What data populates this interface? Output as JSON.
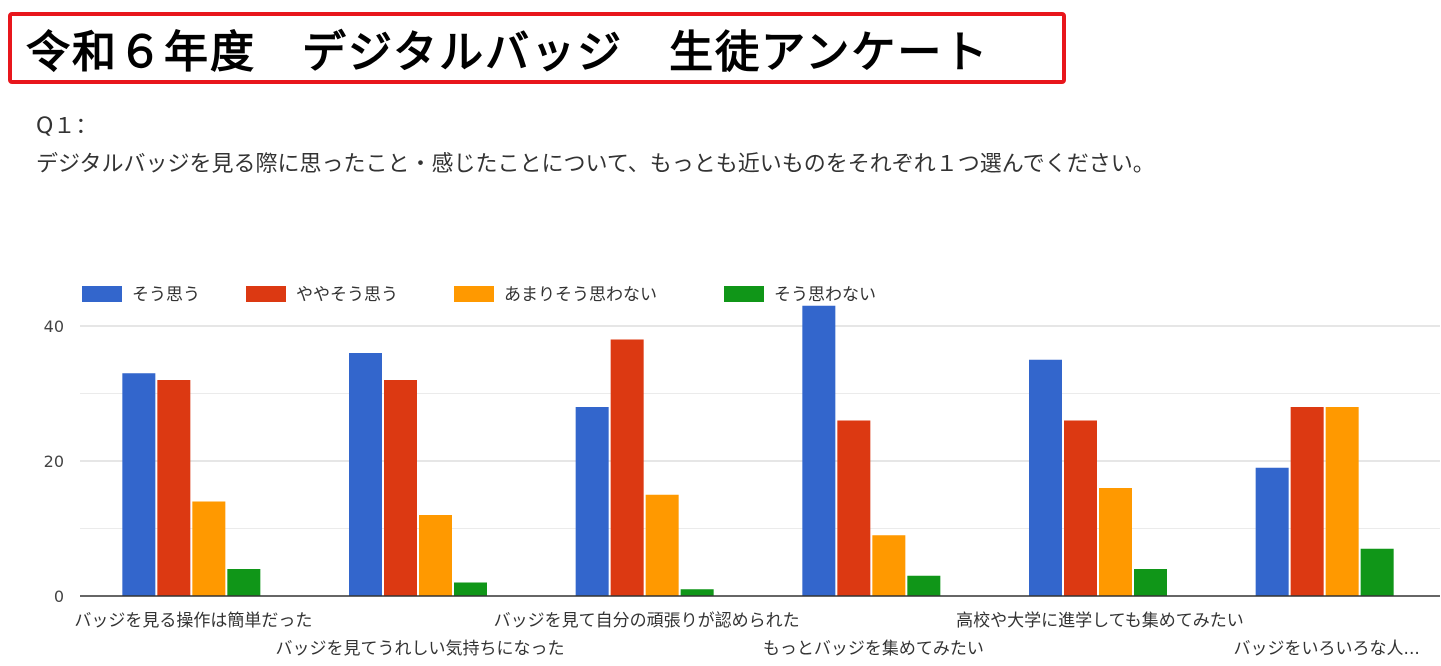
{
  "header": {
    "title": "令和６年度　デジタルバッジ　生徒アンケート"
  },
  "question": {
    "label": "Q１：",
    "text": "デジタルバッジを見る際に思ったこと・感じたことについて、もっとも近いものをそれぞれ１つ選んでください。"
  },
  "chart_data": {
    "type": "bar",
    "categories": [
      "バッジを見る操作は簡単だった",
      "バッジを見てうれしい気持ちになった",
      "バッジを見て自分の頑張りが認められた",
      "もっとバッジを集めてみたい",
      "高校や大学に進学しても集めてみたい",
      "バッジをいろいろな人..."
    ],
    "series": [
      {
        "name": "そう思う",
        "color": "#3366cc",
        "values": [
          33,
          36,
          28,
          43,
          35,
          19
        ]
      },
      {
        "name": "ややそう思う",
        "color": "#dc3912",
        "values": [
          32,
          32,
          38,
          26,
          26,
          28
        ]
      },
      {
        "name": "あまりそう思わない",
        "color": "#ff9900",
        "values": [
          14,
          12,
          15,
          9,
          16,
          28
        ]
      },
      {
        "name": "そう思わない",
        "color": "#109618",
        "values": [
          4,
          2,
          1,
          3,
          4,
          7
        ]
      }
    ],
    "ylim": [
      0,
      40
    ],
    "yticks": [
      "0",
      "20",
      "40"
    ],
    "legend_position": "top-left",
    "grid": true
  }
}
